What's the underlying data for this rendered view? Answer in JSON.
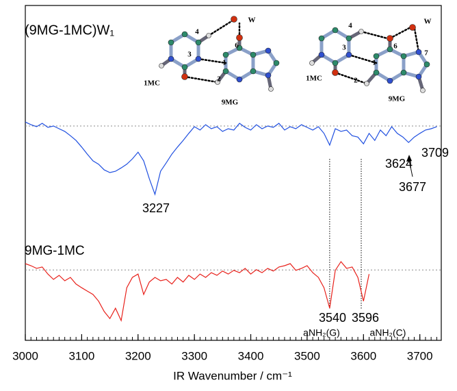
{
  "chart_data": {
    "type": "line",
    "xlabel": "IR Wavenumber / cm⁻¹",
    "xlim": [
      3000,
      3738
    ],
    "xticks": [
      3000,
      3100,
      3200,
      3300,
      3400,
      3500,
      3600,
      3700
    ],
    "ylim": [
      0,
      100
    ],
    "reference_lines": [
      64,
      21
    ],
    "series": [
      {
        "name": "(9MG-1MC)W₁",
        "color": "#1f4fe0",
        "x": [
          3000,
          3010,
          3020,
          3030,
          3040,
          3050,
          3060,
          3070,
          3080,
          3090,
          3100,
          3110,
          3120,
          3130,
          3140,
          3150,
          3160,
          3170,
          3180,
          3190,
          3200,
          3210,
          3220,
          3230,
          3240,
          3250,
          3260,
          3270,
          3280,
          3290,
          3300,
          3310,
          3320,
          3330,
          3340,
          3350,
          3360,
          3370,
          3380,
          3390,
          3400,
          3410,
          3420,
          3430,
          3440,
          3450,
          3460,
          3470,
          3480,
          3490,
          3500,
          3510,
          3520,
          3530,
          3540,
          3550,
          3560,
          3570,
          3580,
          3590,
          3600,
          3610,
          3620,
          3630,
          3640,
          3650,
          3660,
          3670,
          3680,
          3690,
          3700,
          3710,
          3720,
          3730
        ],
        "values": [
          65.2,
          64.4,
          63.8,
          64.8,
          63.6,
          64.0,
          63.2,
          62.4,
          61.1,
          59.7,
          57.7,
          55.6,
          53.6,
          52.6,
          50.9,
          50.1,
          50.5,
          51.5,
          52.6,
          54.2,
          56.2,
          53.6,
          48.3,
          43.6,
          50.5,
          53.0,
          55.6,
          57.7,
          59.7,
          61.8,
          63.8,
          62.8,
          64.4,
          63.2,
          63.8,
          62.4,
          63.2,
          62.8,
          64.8,
          63.6,
          62.8,
          64.4,
          63.2,
          64.0,
          63.6,
          64.8,
          62.8,
          63.8,
          63.2,
          64.4,
          63.6,
          62.8,
          63.8,
          61.8,
          58.3,
          63.2,
          62.4,
          62.8,
          61.1,
          60.7,
          58.7,
          61.8,
          59.7,
          62.8,
          61.1,
          63.8,
          61.8,
          60.7,
          59.1,
          60.7,
          61.8,
          62.8,
          63.2,
          63.8
        ]
      },
      {
        "name": "9MG-1MC",
        "color": "#e8201a",
        "x": [
          3000,
          3010,
          3020,
          3030,
          3040,
          3050,
          3060,
          3070,
          3080,
          3090,
          3100,
          3110,
          3120,
          3130,
          3140,
          3150,
          3160,
          3170,
          3180,
          3190,
          3200,
          3210,
          3220,
          3230,
          3240,
          3250,
          3260,
          3270,
          3280,
          3290,
          3300,
          3310,
          3320,
          3330,
          3340,
          3350,
          3360,
          3370,
          3380,
          3390,
          3400,
          3410,
          3420,
          3430,
          3440,
          3450,
          3460,
          3470,
          3480,
          3490,
          3500,
          3510,
          3520,
          3530,
          3540,
          3550,
          3560,
          3570,
          3580,
          3590,
          3600,
          3610
        ],
        "values": [
          22.9,
          22.3,
          21.5,
          21.9,
          19.8,
          18.2,
          19.4,
          17.8,
          18.8,
          16.8,
          15.7,
          14.7,
          13.7,
          11.7,
          8.6,
          6.5,
          9.6,
          5.9,
          15.7,
          18.8,
          19.8,
          13.7,
          17.4,
          18.8,
          17.8,
          18.2,
          16.8,
          18.8,
          17.4,
          19.4,
          18.2,
          19.8,
          18.8,
          20.2,
          19.4,
          20.7,
          19.8,
          20.9,
          20.2,
          21.5,
          19.8,
          21.1,
          20.2,
          21.5,
          20.7,
          21.9,
          22.3,
          22.9,
          20.9,
          21.5,
          22.3,
          20.2,
          18.8,
          15.7,
          9.6,
          20.9,
          23.5,
          21.5,
          21.9,
          18.8,
          11.7,
          19.8
        ]
      }
    ],
    "annotations": [
      "3227",
      "3624",
      "3677",
      "3709",
      "3540",
      "3596",
      "aNH₂(G)",
      "aNH₂(C)"
    ],
    "structure_labels": [
      [
        "W",
        "4",
        "3",
        "6",
        "1",
        "2",
        "1MC",
        "9MG"
      ],
      [
        "W",
        "4",
        "3",
        "6",
        "7",
        "1",
        "2",
        "1MC",
        "9MG"
      ]
    ]
  }
}
